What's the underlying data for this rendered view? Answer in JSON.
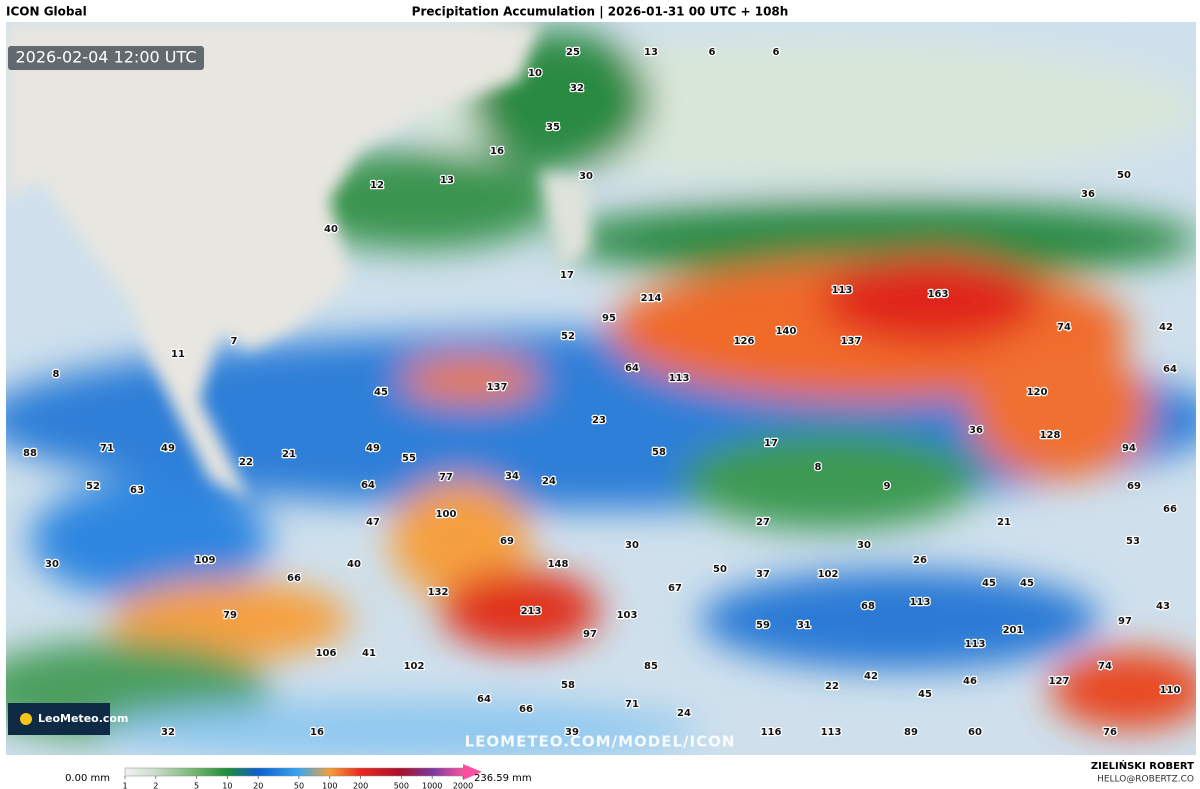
{
  "header": {
    "model": "ICON Global",
    "title": "Precipitation Accumulation | 2026-01-31 00 UTC + 108h"
  },
  "map": {
    "timestamp": "2026-02-04 12:00 UTC",
    "watermark": "LEOMETEO.COM/MODEL/ICON",
    "logo": "LeoMeteo.com",
    "labels": [
      25,
      13,
      6,
      6,
      10,
      32,
      35,
      16,
      50,
      12,
      13,
      30,
      36,
      40,
      17,
      113,
      163,
      214,
      95,
      74,
      42,
      140,
      126,
      137,
      52,
      7,
      11,
      64,
      113,
      64,
      8,
      137,
      45,
      120,
      23,
      36,
      128,
      17,
      49,
      88,
      71,
      49,
      58,
      94,
      21,
      22,
      55,
      8,
      77,
      34,
      24,
      52,
      63,
      64,
      9,
      69,
      66,
      47,
      100,
      27,
      21,
      69,
      30,
      30,
      53,
      109,
      30,
      40,
      148,
      26,
      50,
      37,
      102,
      66,
      45,
      45,
      67,
      132,
      113,
      68,
      43,
      79,
      213,
      103,
      59,
      31,
      97,
      201,
      97,
      113,
      106,
      41,
      102,
      85,
      74,
      42,
      46,
      127,
      58,
      22,
      110,
      45,
      64,
      66,
      71,
      24,
      32,
      16,
      39,
      116,
      113,
      89,
      60,
      76
    ]
  },
  "legend": {
    "min_label": "0.00 mm",
    "max_label": "236.59 mm",
    "scale": "log",
    "lim": [
      1,
      2000
    ],
    "ticks": [
      1,
      2,
      5,
      10,
      20,
      50,
      100,
      200,
      500,
      1000,
      2000
    ],
    "colors": [
      "#f2f2f2",
      "#c9dcc9",
      "#6fb36f",
      "#1f8a3a",
      "#0a5fd0",
      "#39a7f0",
      "#f5a03a",
      "#e8281e",
      "#a8102c",
      "#7a3aa0",
      "#ff4fa0"
    ]
  },
  "credit": {
    "author": "ZIELIŃSKI ROBERT",
    "email": "HELLO@ROBERTZ.CO"
  }
}
